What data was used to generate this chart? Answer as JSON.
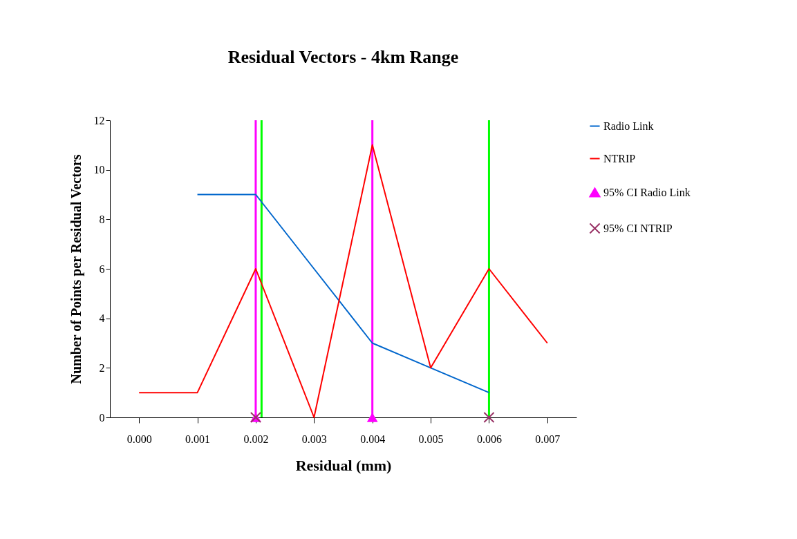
{
  "chart_data": {
    "type": "line",
    "title": "Residual Vectors - 4km Range",
    "xlabel": "Residual (mm)",
    "ylabel": "Number of Points per Residual Vectors",
    "xlim": [
      -0.0005,
      0.0075
    ],
    "xticks": [
      {
        "value": 0,
        "label": "0.000"
      },
      {
        "value": 0.001,
        "label": "0.001"
      },
      {
        "value": 0.002,
        "label": "0.002"
      },
      {
        "value": 0.003,
        "label": "0.003"
      },
      {
        "value": 0.004,
        "label": "0.004"
      },
      {
        "value": 0.005,
        "label": "0.005"
      },
      {
        "value": 0.006,
        "label": "0.006"
      },
      {
        "value": 0.007,
        "label": "0.007"
      }
    ],
    "ylim": [
      0,
      12
    ],
    "yticks": [
      0,
      2,
      4,
      6,
      8,
      10,
      12
    ],
    "grid": false,
    "legend": "right",
    "series": [
      {
        "name": "Radio Link",
        "color": "#0066cc",
        "x": [
          0.001,
          0.002,
          0.003,
          0.004,
          0.005,
          0.006
        ],
        "values": [
          9,
          9,
          6,
          3,
          2,
          1
        ]
      },
      {
        "name": "NTRIP",
        "color": "#ff0000",
        "x": [
          0,
          0.001,
          0.002,
          0.003,
          0.004,
          0.005,
          0.006,
          0.007
        ],
        "values": [
          1,
          1,
          6,
          0,
          11,
          2,
          6,
          3
        ]
      },
      {
        "name": "95% CI Radio Link",
        "type": "scatter",
        "marker": "triangle",
        "color": "#ff00ff",
        "x": [
          0.002,
          0.004
        ],
        "values": [
          0,
          0
        ]
      },
      {
        "name": "95% CI NTRIP",
        "type": "scatter",
        "marker": "cross",
        "color": "#993366",
        "x": [
          0.002,
          0.006
        ],
        "values": [
          0,
          0
        ]
      }
    ],
    "ref_lines": [
      {
        "axis": "x",
        "value": 0.002,
        "color": "#ff00ff"
      },
      {
        "axis": "x",
        "value": 0.0021,
        "color": "#00ff00"
      },
      {
        "axis": "x",
        "value": 0.004,
        "color": "#ff00ff"
      },
      {
        "axis": "x",
        "value": 0.006,
        "color": "#00ff00"
      }
    ]
  }
}
